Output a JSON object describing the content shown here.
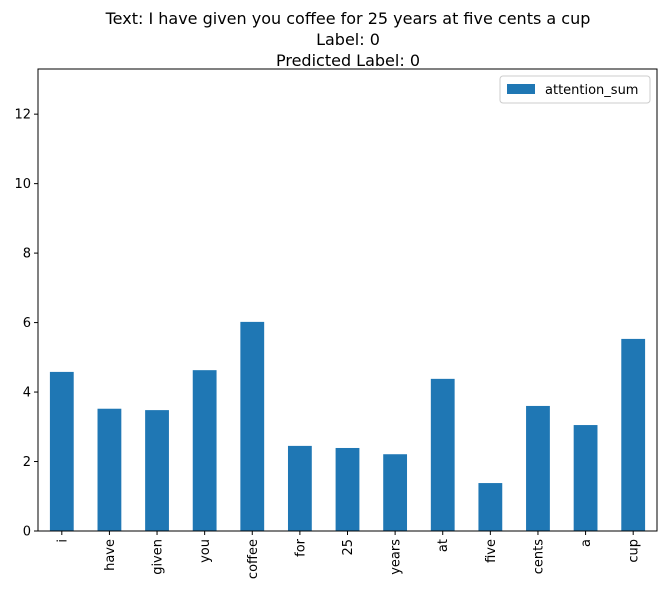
{
  "chart_data": {
    "type": "bar",
    "title_lines": [
      "Text: I have given you coffee for 25 years at five cents a cup",
      "Label: 0",
      "Predicted Label: 0"
    ],
    "xlabel": "",
    "ylabel": "",
    "categories": [
      "i",
      "have",
      "given",
      "you",
      "coffee",
      "for",
      "25",
      "years",
      "at",
      "five",
      "cents",
      "a",
      "cup"
    ],
    "series": [
      {
        "name": "attention_sum",
        "color": "#1f77b4",
        "values": [
          4.58,
          3.52,
          3.48,
          4.63,
          6.02,
          2.45,
          2.39,
          2.21,
          4.38,
          1.38,
          3.6,
          3.05,
          5.53
        ]
      }
    ],
    "ylim": [
      0,
      13.3
    ],
    "yticks": [
      0,
      2,
      4,
      6,
      8,
      10,
      12
    ],
    "legend_position": "top-right",
    "grid": false
  }
}
